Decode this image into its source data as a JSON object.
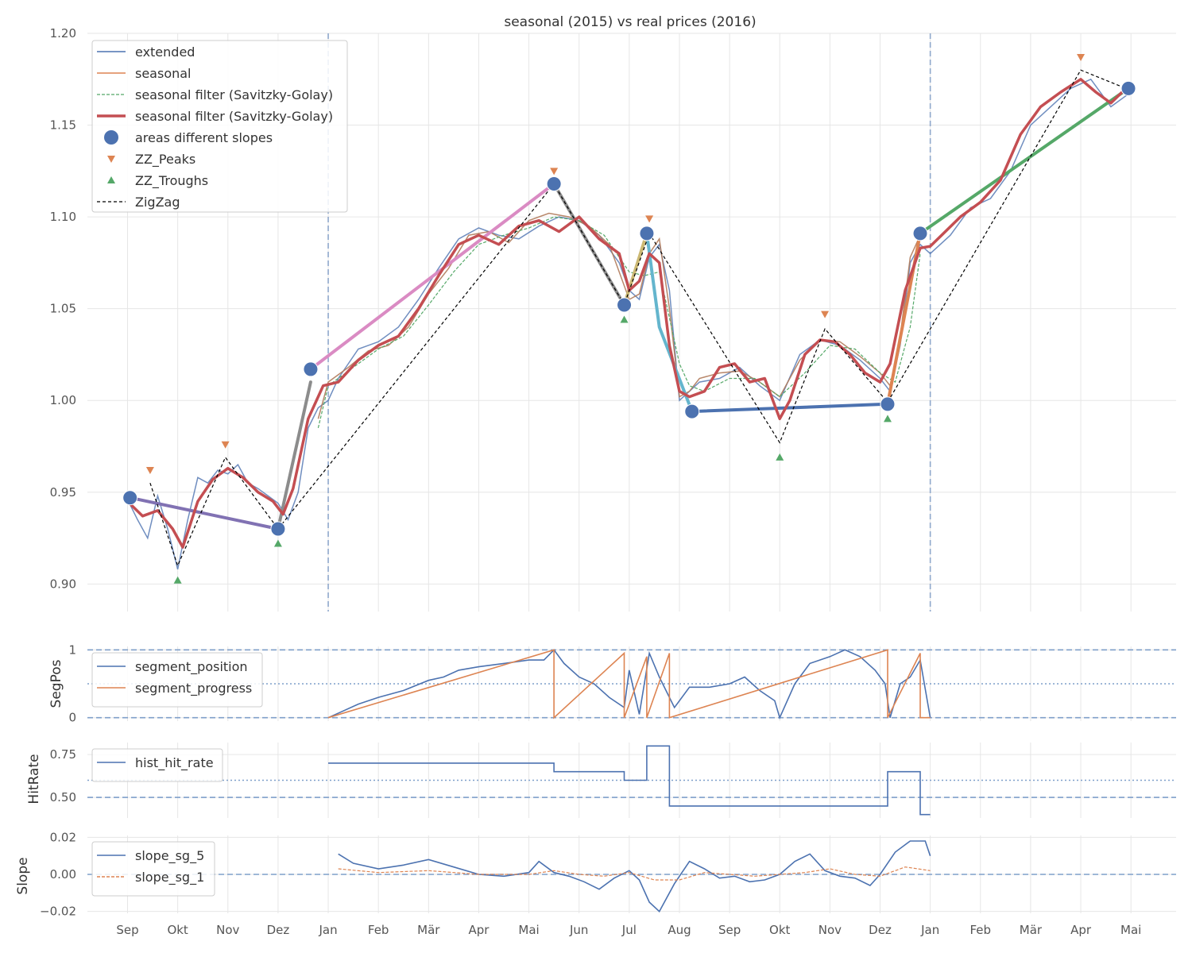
{
  "chart_data": [
    {
      "type": "line",
      "title": "seasonal (2015) vs real prices (2016)",
      "ylabel": "",
      "ylim": [
        0.885,
        1.2
      ],
      "yticks": [
        0.9,
        0.95,
        1.0,
        1.05,
        1.1,
        1.15,
        1.2
      ],
      "ytick_labels": [
        "0.90",
        "0.95",
        "1.00",
        "1.05",
        "1.10",
        "1.15",
        "1.20"
      ],
      "xticks": [
        "Sep",
        "Okt",
        "Nov",
        "Dez",
        "Jan",
        "Feb",
        "Mär",
        "Apr",
        "Mai",
        "Jun",
        "Jul",
        "Aug",
        "Sep",
        "Okt",
        "Nov",
        "Dez",
        "Jan",
        "Feb",
        "Mär",
        "Apr",
        "Mai"
      ],
      "xtick_pos": [
        0,
        1,
        2,
        3,
        4,
        5,
        6,
        7,
        8,
        9,
        10,
        11,
        12,
        13,
        14,
        15,
        16,
        17,
        18,
        19,
        20
      ],
      "xlim": [
        -0.8,
        20.9
      ],
      "vlines": [
        4.0,
        16.0
      ],
      "grid": true,
      "legend_position": "top-left",
      "legend": [
        "extended",
        "seasonal",
        "seasonal filter (Savitzky-Golay)",
        "seasonal filter (Savitzky-Golay)",
        "areas different slopes",
        "ZZ_Peaks",
        "ZZ_Troughs",
        "ZigZag"
      ],
      "colors": {
        "extended": "#4c72b0",
        "seasonal": "#dd8452",
        "sg_thin": "#55a868",
        "sg_thick": "#c44e52",
        "peaks": "#dd8452",
        "troughs": "#55a868",
        "zigzag": "#000000",
        "markers": "#4c72b0"
      },
      "series": [
        {
          "name": "extended",
          "x": [
            0,
            0.2,
            0.4,
            0.6,
            0.8,
            1.0,
            1.2,
            1.4,
            1.6,
            1.8,
            2.0,
            2.2,
            2.4,
            2.6,
            2.8,
            3.0,
            3.2,
            3.4,
            3.6,
            3.8,
            4.0,
            4.2,
            4.4,
            4.6,
            4.8,
            5.0,
            5.4,
            5.8,
            6.2,
            6.6,
            7.0,
            7.4,
            7.8,
            8.2,
            8.6,
            9.0,
            9.4,
            9.8,
            10.0,
            10.2,
            10.4,
            10.6,
            10.8,
            11.0,
            11.2,
            11.4,
            11.8,
            12.2,
            12.6,
            13.0,
            13.4,
            13.8,
            14.2,
            14.6,
            15.0,
            15.2,
            15.4,
            15.6,
            15.8,
            16.0,
            16.4,
            16.8,
            17.2,
            17.6,
            18.0,
            18.4,
            18.8,
            19.2,
            19.6,
            20.0
          ],
          "y": [
            0.946,
            0.935,
            0.925,
            0.948,
            0.93,
            0.908,
            0.935,
            0.958,
            0.955,
            0.962,
            0.96,
            0.965,
            0.955,
            0.952,
            0.948,
            0.944,
            0.935,
            0.95,
            0.985,
            0.996,
            1.0,
            1.012,
            1.02,
            1.028,
            1.03,
            1.032,
            1.04,
            1.055,
            1.072,
            1.088,
            1.094,
            1.09,
            1.088,
            1.095,
            1.1,
            1.098,
            1.09,
            1.075,
            1.06,
            1.055,
            1.078,
            1.085,
            1.06,
            1.0,
            1.005,
            1.01,
            1.012,
            1.018,
            1.008,
            1.0,
            1.025,
            1.033,
            1.03,
            1.022,
            1.012,
            1.005,
            1.03,
            1.075,
            1.085,
            1.08,
            1.09,
            1.105,
            1.11,
            1.125,
            1.15,
            1.16,
            1.17,
            1.175,
            1.16,
            1.168
          ]
        },
        {
          "name": "seasonal",
          "x": [
            3.8,
            4.0,
            4.4,
            4.8,
            5.2,
            5.6,
            6.0,
            6.4,
            6.8,
            7.2,
            7.6,
            8.0,
            8.4,
            8.8,
            9.2,
            9.6,
            10.0,
            10.2,
            10.4,
            10.6,
            10.8,
            11.0,
            11.2,
            11.4,
            11.8,
            12.2,
            12.6,
            13.0,
            13.4,
            13.8,
            14.2,
            14.6,
            15.0,
            15.2,
            15.4,
            15.6,
            15.8
          ],
          "y": [
            0.99,
            1.01,
            1.018,
            1.027,
            1.03,
            1.04,
            1.058,
            1.072,
            1.09,
            1.092,
            1.086,
            1.098,
            1.102,
            1.1,
            1.095,
            1.085,
            1.055,
            1.058,
            1.08,
            1.088,
            1.05,
            1.002,
            1.005,
            1.012,
            1.015,
            1.016,
            1.01,
            1.002,
            1.022,
            1.033,
            1.032,
            1.024,
            1.015,
            1.008,
            1.035,
            1.078,
            1.09
          ]
        },
        {
          "name": "seasonal filter (Savitzky-Golay)",
          "x": [
            3.8,
            4.0,
            4.5,
            5.0,
            5.5,
            6.0,
            6.5,
            7.0,
            7.5,
            8.0,
            8.5,
            9.0,
            9.5,
            10.0,
            10.3,
            10.6,
            10.8,
            11.0,
            11.2,
            11.5,
            12.0,
            12.5,
            13.0,
            13.5,
            14.0,
            14.5,
            15.0,
            15.3,
            15.6,
            15.8
          ],
          "y": [
            0.985,
            1.008,
            1.018,
            1.028,
            1.035,
            1.052,
            1.07,
            1.085,
            1.09,
            1.094,
            1.1,
            1.098,
            1.09,
            1.07,
            1.068,
            1.07,
            1.045,
            1.02,
            1.008,
            1.005,
            1.012,
            1.012,
            1.002,
            1.015,
            1.03,
            1.028,
            1.015,
            1.01,
            1.04,
            1.08
          ]
        },
        {
          "name": "seasonal filter (Savitzky-Golay)",
          "x": [
            0,
            0.3,
            0.6,
            0.9,
            1.1,
            1.4,
            1.7,
            2.0,
            2.3,
            2.6,
            2.9,
            3.1,
            3.3,
            3.6,
            3.9,
            4.2,
            4.6,
            5.0,
            5.4,
            5.8,
            6.2,
            6.6,
            7.0,
            7.4,
            7.8,
            8.2,
            8.6,
            9.0,
            9.4,
            9.8,
            10.0,
            10.2,
            10.4,
            10.6,
            10.8,
            11.0,
            11.2,
            11.5,
            11.8,
            12.1,
            12.4,
            12.7,
            13.0,
            13.2,
            13.5,
            13.8,
            14.1,
            14.4,
            14.7,
            15.0,
            15.2,
            15.5,
            15.8,
            16.0,
            16.3,
            16.6,
            17.0,
            17.4,
            17.8,
            18.2,
            18.6,
            19.0,
            19.3,
            19.6,
            19.9
          ],
          "y": [
            0.945,
            0.937,
            0.94,
            0.93,
            0.92,
            0.945,
            0.957,
            0.963,
            0.958,
            0.95,
            0.945,
            0.938,
            0.952,
            0.99,
            1.008,
            1.01,
            1.022,
            1.03,
            1.035,
            1.05,
            1.068,
            1.085,
            1.09,
            1.085,
            1.095,
            1.098,
            1.092,
            1.1,
            1.088,
            1.08,
            1.06,
            1.065,
            1.08,
            1.075,
            1.03,
            1.005,
            1.002,
            1.005,
            1.018,
            1.02,
            1.01,
            1.012,
            0.99,
            1.0,
            1.025,
            1.033,
            1.032,
            1.025,
            1.015,
            1.01,
            1.02,
            1.06,
            1.083,
            1.084,
            1.092,
            1.1,
            1.108,
            1.12,
            1.145,
            1.16,
            1.168,
            1.175,
            1.168,
            1.162,
            1.17
          ]
        },
        {
          "name": "ZigZag",
          "x": [
            0.45,
            1.0,
            1.95,
            3.0,
            8.5,
            9.9,
            10.4,
            13.0,
            13.9,
            15.15,
            19.0,
            19.9
          ],
          "y": [
            0.955,
            0.91,
            0.969,
            0.93,
            1.118,
            1.052,
            1.091,
            0.977,
            1.039,
            0.999,
            1.18,
            1.17
          ]
        }
      ],
      "zz_peaks": {
        "x": [
          0.45,
          1.95,
          8.5,
          10.4,
          13.9,
          19.0
        ],
        "y": [
          0.962,
          0.976,
          1.125,
          1.099,
          1.047,
          1.187
        ]
      },
      "zz_troughs": {
        "x": [
          1.0,
          3.0,
          9.9,
          13.0,
          15.15
        ],
        "y": [
          0.902,
          0.922,
          1.044,
          0.969,
          0.99
        ]
      },
      "areas_markers": {
        "x": [
          0.05,
          3.0,
          3.65,
          8.5,
          9.9,
          10.35,
          11.25,
          15.15,
          15.8,
          19.95
        ],
        "y": [
          0.947,
          0.93,
          1.017,
          1.118,
          1.052,
          1.091,
          0.994,
          0.998,
          1.091,
          1.17
        ]
      },
      "slope_lines": [
        {
          "color": "#8172b3",
          "x": [
            0.05,
            3.0
          ],
          "y": [
            0.947,
            0.93
          ]
        },
        {
          "color": "#8c8c8c",
          "x": [
            3.0,
            3.65
          ],
          "y": [
            0.93,
            1.01
          ]
        },
        {
          "color": "#da8bc3",
          "x": [
            3.65,
            8.5
          ],
          "y": [
            1.017,
            1.118
          ]
        },
        {
          "color": "#8c8c8c",
          "x": [
            8.5,
            9.9
          ],
          "y": [
            1.118,
            1.052
          ]
        },
        {
          "color": "#ccb974",
          "x": [
            9.9,
            10.35
          ],
          "y": [
            1.052,
            1.091
          ]
        },
        {
          "color": "#64b5cd",
          "x": [
            10.35,
            10.6,
            11.25
          ],
          "y": [
            1.091,
            1.04,
            0.994
          ]
        },
        {
          "color": "#4c72b0",
          "x": [
            11.25,
            15.15
          ],
          "y": [
            0.994,
            0.998
          ]
        },
        {
          "color": "#dd8452",
          "x": [
            15.15,
            15.8
          ],
          "y": [
            0.998,
            1.091
          ]
        },
        {
          "color": "#55a868",
          "x": [
            15.8,
            19.95
          ],
          "y": [
            1.091,
            1.17
          ]
        }
      ]
    },
    {
      "type": "line",
      "ylabel": "SegPos",
      "ylim": [
        -0.05,
        1.05
      ],
      "yticks": [
        0,
        1
      ],
      "ytick_labels": [
        "0",
        "1"
      ],
      "hlines_dashed": [
        0,
        1
      ],
      "hlines_dotted": [
        0.5
      ],
      "legend": [
        "segment_position",
        "segment_progress"
      ],
      "series": [
        {
          "name": "segment_position",
          "color": "#4c72b0",
          "x": [
            4.0,
            4.3,
            4.6,
            5.0,
            5.5,
            6.0,
            6.3,
            6.6,
            7.0,
            7.5,
            8.0,
            8.3,
            8.5,
            8.7,
            9.0,
            9.3,
            9.6,
            9.9,
            10.0,
            10.2,
            10.4,
            10.6,
            10.9,
            11.2,
            11.6,
            12.0,
            12.3,
            12.6,
            12.9,
            13.0,
            13.3,
            13.6,
            14.0,
            14.3,
            14.6,
            14.9,
            15.1,
            15.2,
            15.4,
            15.6,
            15.8,
            16.0
          ],
          "y": [
            0.0,
            0.1,
            0.2,
            0.3,
            0.4,
            0.55,
            0.6,
            0.7,
            0.75,
            0.8,
            0.85,
            0.85,
            1.0,
            0.8,
            0.6,
            0.5,
            0.3,
            0.15,
            0.7,
            0.05,
            0.95,
            0.6,
            0.15,
            0.45,
            0.45,
            0.5,
            0.6,
            0.4,
            0.25,
            0.0,
            0.5,
            0.8,
            0.9,
            1.0,
            0.9,
            0.7,
            0.5,
            0.0,
            0.5,
            0.6,
            0.85,
            0.0
          ]
        },
        {
          "name": "segment_progress",
          "color": "#dd8452",
          "x": [
            4.0,
            8.5,
            8.5,
            9.9,
            9.9,
            10.35,
            10.35,
            10.8,
            10.8,
            15.15,
            15.15,
            15.8,
            15.8,
            16.0
          ],
          "y": [
            0.0,
            1.0,
            0.0,
            0.95,
            0.0,
            0.9,
            0.0,
            0.95,
            0.0,
            1.0,
            0.0,
            0.95,
            0.0,
            0.0
          ]
        }
      ]
    },
    {
      "type": "line",
      "ylabel": "HitRate",
      "ylim": [
        0.38,
        0.82
      ],
      "yticks": [
        0.5,
        0.75
      ],
      "ytick_labels": [
        "0.50",
        "0.75"
      ],
      "hlines_dashed": [
        0.5
      ],
      "hlines_dotted": [
        0.6
      ],
      "legend": [
        "hist_hit_rate"
      ],
      "series": [
        {
          "name": "hist_hit_rate",
          "color": "#4c72b0",
          "x": [
            4.0,
            8.5,
            8.5,
            9.9,
            9.9,
            10.35,
            10.35,
            10.8,
            10.8,
            15.15,
            15.15,
            15.8,
            15.8,
            16.0
          ],
          "y": [
            0.7,
            0.7,
            0.65,
            0.65,
            0.6,
            0.6,
            0.8,
            0.8,
            0.45,
            0.45,
            0.65,
            0.65,
            0.4,
            0.4
          ]
        }
      ]
    },
    {
      "type": "line",
      "ylabel": "Slope",
      "ylim": [
        -0.021,
        0.021
      ],
      "yticks": [
        -0.02,
        0.0,
        0.02
      ],
      "ytick_labels": [
        "−0.02",
        "0.00",
        "0.02"
      ],
      "hlines_dashed": [
        0.0
      ],
      "legend": [
        "slope_sg_5",
        "slope_sg_1"
      ],
      "series": [
        {
          "name": "slope_sg_5",
          "color": "#4c72b0",
          "x": [
            4.2,
            4.5,
            5.0,
            5.5,
            6.0,
            6.5,
            7.0,
            7.5,
            8.0,
            8.2,
            8.5,
            8.8,
            9.1,
            9.4,
            9.7,
            10.0,
            10.2,
            10.4,
            10.6,
            10.9,
            11.2,
            11.5,
            11.8,
            12.1,
            12.4,
            12.7,
            13.0,
            13.3,
            13.6,
            13.9,
            14.2,
            14.5,
            14.8,
            15.0,
            15.3,
            15.6,
            15.9,
            16.0
          ],
          "y": [
            0.011,
            0.006,
            0.003,
            0.005,
            0.008,
            0.004,
            0.0,
            -0.001,
            0.001,
            0.007,
            0.001,
            -0.001,
            -0.004,
            -0.008,
            -0.002,
            0.002,
            -0.003,
            -0.015,
            -0.02,
            -0.005,
            0.007,
            0.003,
            -0.002,
            -0.001,
            -0.004,
            -0.003,
            0.0,
            0.007,
            0.011,
            0.002,
            -0.001,
            -0.002,
            -0.006,
            0.0,
            0.012,
            0.018,
            0.018,
            0.01
          ]
        },
        {
          "name": "slope_sg_1",
          "color": "#dd8452",
          "x": [
            4.2,
            5.0,
            6.0,
            7.0,
            8.0,
            8.5,
            9.0,
            9.5,
            10.0,
            10.5,
            11.0,
            11.5,
            12.0,
            12.5,
            13.0,
            13.5,
            14.0,
            14.5,
            15.0,
            15.5,
            16.0
          ],
          "y": [
            0.003,
            0.001,
            0.002,
            0.0,
            0.0,
            0.002,
            0.0,
            -0.001,
            0.001,
            -0.003,
            -0.003,
            0.001,
            0.0,
            -0.001,
            0.0,
            0.001,
            0.003,
            0.0,
            -0.001,
            0.004,
            0.002
          ]
        }
      ]
    }
  ]
}
